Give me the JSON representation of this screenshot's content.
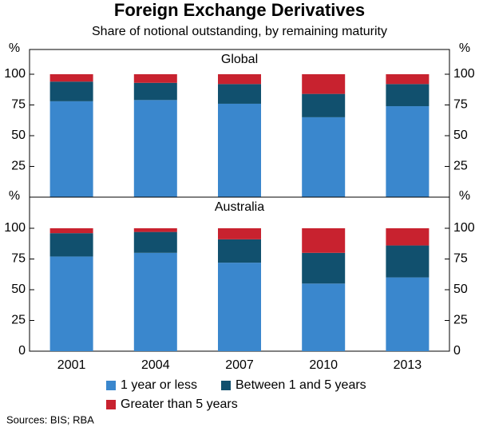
{
  "title": "Foreign Exchange Derivatives",
  "subtitle": "Share of notional outstanding, by remaining maturity",
  "sources": "Sources: BIS; RBA",
  "chart_data": [
    {
      "type": "bar",
      "stacked": true,
      "title": "Global",
      "y_unit": "%",
      "ylim": [
        0,
        100
      ],
      "yticks": [
        25,
        50,
        75,
        100
      ],
      "series": [
        {
          "name": "1 year or less",
          "color": "#3a87cd",
          "values": [
            78,
            79,
            76,
            65,
            74
          ]
        },
        {
          "name": "Between 1 and 5 years",
          "color": "#11506e",
          "values": [
            16,
            14,
            16,
            19,
            18
          ]
        },
        {
          "name": "Greater than 5 years",
          "color": "#c8222f",
          "values": [
            6,
            7,
            8,
            16,
            8
          ]
        }
      ]
    },
    {
      "type": "bar",
      "stacked": true,
      "title": "Australia",
      "y_unit": "%",
      "categories": [
        "2001",
        "2004",
        "2007",
        "2010",
        "2013"
      ],
      "ylim": [
        0,
        100
      ],
      "yticks": [
        0,
        25,
        50,
        75,
        100
      ],
      "series": [
        {
          "color": "#3a87cd",
          "values": [
            77,
            80,
            72,
            55,
            60
          ]
        },
        {
          "color": "#11506e",
          "values": [
            19,
            17,
            19,
            25,
            26
          ]
        },
        {
          "color": "#c8222f",
          "values": [
            4,
            3,
            9,
            20,
            14
          ]
        }
      ]
    }
  ]
}
